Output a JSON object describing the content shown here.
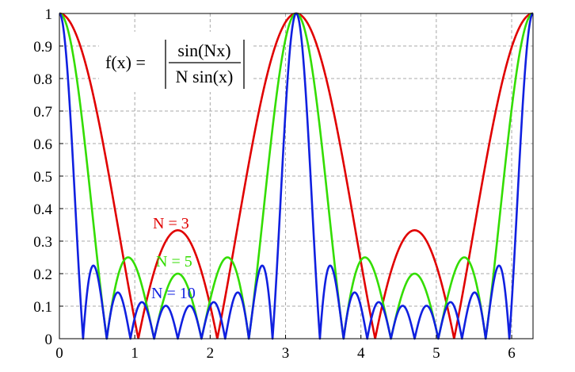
{
  "chart_data": {
    "type": "line",
    "function": "|sin(Nx)/(N sin(x))|",
    "xlim": [
      0,
      6.2832
    ],
    "ylim": [
      0,
      1
    ],
    "grid": true,
    "x_ticks": [
      "0",
      "1",
      "2",
      "3",
      "4",
      "5",
      "6"
    ],
    "y_ticks": [
      "0",
      "0.1",
      "0.2",
      "0.3",
      "0.4",
      "0.5",
      "0.6",
      "0.7",
      "0.8",
      "0.9",
      "1"
    ],
    "formula": {
      "lhs": "f(x) =",
      "numerator": "sin(Nx)",
      "denominator": "N sin(x)"
    },
    "series": [
      {
        "name": "N = 3",
        "N": 3,
        "color": "#e00000"
      },
      {
        "name": "N = 5",
        "N": 5,
        "color": "#33dd00"
      },
      {
        "name": "N = 10",
        "N": 10,
        "color": "#1020e0"
      }
    ]
  }
}
